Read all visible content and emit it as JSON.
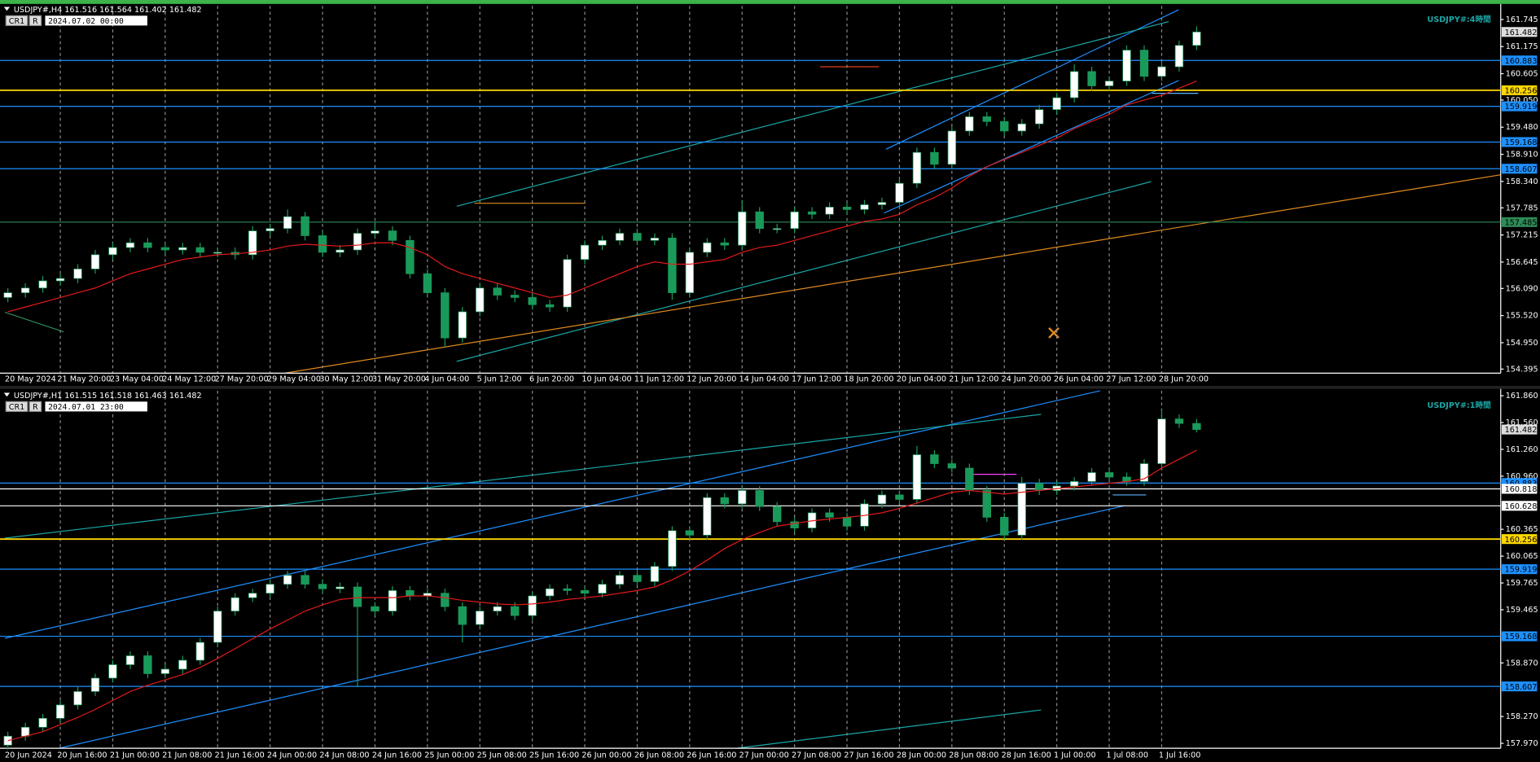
{
  "chart_data": [
    {
      "type": "candlestick",
      "title": "USDJPY#,H4  161.516 161.564 161.402 161.482",
      "buttons": [
        "CR1",
        "R"
      ],
      "time": "2024.07.02 00:00",
      "label": "USDJPY#:4時間",
      "categories": [
        "20 May 2024",
        null,
        null,
        "21 May 20:00",
        null,
        null,
        "23 May 04:00",
        null,
        null,
        "24 May 12:00",
        null,
        null,
        "27 May 20:00",
        null,
        null,
        "29 May 04:00",
        null,
        null,
        "30 May 12:00",
        null,
        null,
        "31 May 20:00",
        null,
        null,
        "4 Jun 04:00",
        null,
        null,
        "5 Jun 12:00",
        null,
        null,
        "6 Jun 20:00",
        null,
        null,
        "10 Jun 04:00",
        null,
        null,
        "11 Jun 12:00",
        null,
        null,
        "12 Jun 20:00",
        null,
        null,
        "14 Jun 04:00",
        null,
        null,
        "17 Jun 12:00",
        null,
        null,
        "18 Jun 20:00",
        null,
        null,
        "20 Jun 04:00",
        null,
        null,
        "21 Jun 12:00",
        null,
        null,
        "24 Jun 20:00",
        null,
        null,
        "26 Jun 04:00",
        null,
        null,
        "27 Jun 12:00",
        null,
        null,
        "28 Jun 20:00",
        null,
        null
      ],
      "open": [
        155.9,
        156.0,
        156.1,
        156.25,
        156.3,
        156.5,
        156.8,
        156.95,
        157.05,
        156.95,
        156.9,
        156.95,
        156.85,
        156.85,
        156.8,
        157.3,
        157.35,
        157.6,
        157.2,
        156.85,
        156.9,
        157.25,
        157.3,
        157.1,
        156.4,
        156.0,
        155.05,
        155.6,
        156.1,
        155.95,
        155.9,
        155.75,
        155.7,
        156.7,
        157.0,
        157.1,
        157.25,
        157.1,
        157.15,
        156.0,
        156.85,
        157.05,
        157.0,
        157.7,
        157.35,
        157.35,
        157.7,
        157.65,
        157.8,
        157.75,
        157.85,
        157.9,
        158.3,
        158.95,
        158.7,
        159.4,
        159.7,
        159.6,
        159.4,
        159.55,
        159.85,
        160.1,
        160.65,
        160.35,
        160.45,
        161.1,
        160.55,
        160.75,
        161.2
      ],
      "high": [
        156.1,
        156.2,
        156.35,
        156.4,
        156.6,
        156.9,
        157.05,
        157.15,
        157.15,
        157.05,
        157.05,
        157.05,
        156.95,
        156.95,
        157.4,
        157.45,
        157.75,
        157.7,
        157.3,
        157.0,
        157.35,
        157.5,
        157.4,
        157.2,
        156.5,
        156.1,
        155.7,
        156.2,
        156.2,
        156.05,
        156.0,
        155.85,
        156.8,
        157.1,
        157.2,
        157.35,
        157.35,
        157.25,
        157.25,
        156.95,
        157.15,
        157.15,
        157.95,
        157.8,
        157.45,
        157.8,
        157.8,
        157.9,
        157.9,
        157.95,
        158.0,
        158.4,
        159.05,
        159.05,
        159.5,
        159.8,
        159.8,
        159.7,
        159.65,
        159.95,
        160.2,
        160.8,
        160.75,
        160.55,
        161.2,
        161.2,
        160.85,
        161.3,
        161.6
      ],
      "low": [
        155.8,
        155.9,
        156.0,
        156.15,
        156.2,
        156.4,
        156.7,
        156.85,
        156.85,
        156.8,
        156.8,
        156.75,
        156.75,
        156.7,
        156.7,
        157.2,
        157.25,
        157.1,
        156.75,
        156.75,
        156.8,
        157.15,
        157.0,
        156.3,
        155.9,
        154.85,
        154.95,
        155.5,
        155.85,
        155.8,
        155.65,
        155.6,
        155.6,
        156.6,
        156.9,
        157.0,
        157.0,
        157.0,
        155.85,
        155.9,
        156.75,
        156.9,
        156.9,
        157.25,
        157.25,
        157.25,
        157.55,
        157.55,
        157.65,
        157.65,
        157.75,
        157.8,
        158.2,
        158.6,
        158.6,
        159.3,
        159.5,
        159.3,
        159.3,
        159.45,
        159.75,
        160.0,
        160.25,
        160.25,
        160.35,
        160.45,
        160.45,
        160.65,
        161.1
      ],
      "close": [
        156.0,
        156.1,
        156.25,
        156.3,
        156.5,
        156.8,
        156.95,
        157.05,
        156.95,
        156.9,
        156.95,
        156.85,
        156.85,
        156.8,
        157.3,
        157.35,
        157.6,
        157.2,
        156.85,
        156.9,
        157.25,
        157.3,
        157.1,
        156.4,
        156.0,
        155.05,
        155.6,
        156.1,
        155.95,
        155.9,
        155.75,
        155.7,
        156.7,
        157.0,
        157.1,
        157.25,
        157.1,
        157.15,
        156.0,
        156.85,
        157.05,
        157.0,
        157.7,
        157.35,
        157.35,
        157.7,
        157.65,
        157.8,
        157.75,
        157.85,
        157.9,
        158.3,
        158.95,
        158.7,
        159.4,
        159.7,
        159.6,
        159.4,
        159.55,
        159.85,
        160.1,
        160.65,
        160.35,
        160.45,
        161.1,
        160.55,
        160.75,
        161.2,
        161.482
      ],
      "ma": [
        155.6,
        155.7,
        155.8,
        155.9,
        156.0,
        156.1,
        156.25,
        156.4,
        156.5,
        156.6,
        156.7,
        156.75,
        156.8,
        156.82,
        156.85,
        156.9,
        156.98,
        157.02,
        157.0,
        156.98,
        157.0,
        157.05,
        157.05,
        156.95,
        156.8,
        156.55,
        156.4,
        156.3,
        156.2,
        156.1,
        156.0,
        155.9,
        155.95,
        156.1,
        156.25,
        156.4,
        156.55,
        156.65,
        156.6,
        156.6,
        156.65,
        156.7,
        156.85,
        156.95,
        157.0,
        157.1,
        157.2,
        157.3,
        157.4,
        157.5,
        157.55,
        157.65,
        157.85,
        158.0,
        158.2,
        158.45,
        158.65,
        158.8,
        158.95,
        159.1,
        159.25,
        159.45,
        159.6,
        159.75,
        159.95,
        160.05,
        160.15,
        160.3,
        160.45
      ],
      "ma_color": "#e31a1a",
      "up_color": "#ffffff",
      "down_color": "#1a9a5a",
      "wick_color": "#1a9a5a",
      "ylim": [
        154.31,
        162.03
      ],
      "yticks": [
        161.745,
        161.175,
        160.605,
        {
          "value": 160.05,
          "label": "160.050"
        },
        {
          "value": 159.48,
          "label": "159.480"
        },
        {
          "value": 158.91,
          "label": "158.910"
        },
        {
          "value": 158.34,
          "label": "158.340"
        },
        157.785,
        157.215,
        156.645,
        {
          "value": 156.09,
          "label": "156.090"
        },
        {
          "value": 155.52,
          "label": "155.520"
        },
        {
          "value": 154.95,
          "label": "154.950"
        },
        154.395
      ],
      "grid": true,
      "levels": [
        {
          "value": 160.883,
          "color": "#1e90ff"
        },
        {
          "value": 160.256,
          "color": "#ffd700"
        },
        {
          "value": 159.919,
          "color": "#1e90ff"
        },
        {
          "value": 159.168,
          "color": "#1e90ff"
        },
        {
          "value": 158.607,
          "color": "#1e90ff"
        },
        {
          "value": 157.485,
          "color": "#2e8b57"
        }
      ],
      "last_price": 161.482
    },
    {
      "type": "candlestick",
      "title": "USDJPY#,H1  161.515 161.518 161.463 161.482",
      "buttons": [
        "CR1",
        "R"
      ],
      "time": "2024.07.01 23:00",
      "label": "USDJPY#:1時間",
      "categories": [
        "20 Jun 2024",
        null,
        null,
        "20 Jun 16:00",
        null,
        null,
        "21 Jun 00:00",
        null,
        null,
        "21 Jun 08:00",
        null,
        null,
        "21 Jun 16:00",
        null,
        null,
        "24 Jun 00:00",
        null,
        null,
        "24 Jun 08:00",
        null,
        null,
        "24 Jun 16:00",
        null,
        null,
        "25 Jun 00:00",
        null,
        null,
        "25 Jun 08:00",
        null,
        null,
        "25 Jun 16:00",
        null,
        null,
        "26 Jun 00:00",
        null,
        null,
        "26 Jun 08:00",
        null,
        null,
        "26 Jun 16:00",
        null,
        null,
        "27 Jun 00:00",
        null,
        null,
        "27 Jun 08:00",
        null,
        null,
        "27 Jun 16:00",
        null,
        null,
        "28 Jun 00:00",
        null,
        null,
        "28 Jun 08:00",
        null,
        null,
        "28 Jun 16:00",
        null,
        null,
        "1 Jul 00:00",
        null,
        null,
        "1 Jul 08:00",
        null,
        null,
        "1 Jul 16:00",
        null,
        null
      ],
      "open": [
        157.95,
        158.05,
        158.15,
        158.25,
        158.4,
        158.55,
        158.7,
        158.85,
        158.95,
        158.75,
        158.8,
        158.9,
        159.1,
        159.45,
        159.6,
        159.65,
        159.75,
        159.85,
        159.75,
        159.7,
        159.72,
        159.5,
        159.45,
        159.68,
        159.62,
        159.65,
        159.5,
        159.3,
        159.45,
        159.5,
        159.4,
        159.62,
        159.7,
        159.68,
        159.65,
        159.75,
        159.85,
        159.78,
        159.95,
        160.35,
        160.3,
        160.72,
        160.65,
        160.8,
        160.62,
        160.45,
        160.38,
        160.55,
        160.5,
        160.4,
        160.65,
        160.75,
        160.7,
        161.2,
        161.1,
        161.05,
        160.8,
        160.5,
        160.3,
        160.88,
        160.8,
        160.85,
        160.9,
        161.0,
        160.95,
        160.9,
        161.1,
        161.6,
        161.55
      ],
      "high": [
        158.1,
        158.2,
        158.3,
        158.45,
        158.6,
        158.75,
        158.9,
        159.0,
        159.0,
        158.85,
        158.95,
        159.15,
        159.5,
        159.65,
        159.7,
        159.8,
        159.9,
        159.9,
        159.8,
        159.77,
        159.77,
        159.55,
        159.73,
        159.73,
        159.7,
        159.7,
        159.55,
        159.5,
        159.55,
        159.55,
        159.67,
        159.75,
        159.75,
        159.73,
        159.8,
        159.9,
        159.9,
        160.0,
        160.4,
        160.4,
        160.77,
        160.77,
        160.85,
        160.85,
        160.67,
        160.5,
        160.6,
        160.6,
        160.55,
        160.7,
        160.8,
        160.8,
        161.3,
        161.25,
        161.15,
        161.1,
        160.85,
        160.55,
        160.95,
        160.93,
        160.9,
        160.95,
        161.05,
        161.05,
        161.0,
        161.15,
        161.7,
        161.65,
        161.6
      ],
      "low": [
        157.9,
        158.0,
        158.1,
        158.2,
        158.35,
        158.5,
        158.65,
        158.8,
        158.7,
        158.7,
        158.75,
        158.85,
        159.05,
        159.4,
        159.55,
        159.6,
        159.7,
        159.7,
        159.65,
        159.65,
        158.6,
        159.4,
        159.4,
        159.57,
        159.57,
        159.45,
        159.1,
        159.25,
        159.4,
        159.35,
        159.35,
        159.57,
        159.63,
        159.6,
        159.6,
        159.7,
        159.73,
        159.73,
        159.9,
        160.25,
        160.25,
        160.6,
        160.6,
        160.57,
        160.4,
        160.33,
        160.33,
        160.45,
        160.35,
        160.35,
        160.6,
        160.65,
        160.65,
        161.05,
        161.0,
        160.75,
        160.45,
        160.25,
        160.25,
        160.75,
        160.75,
        160.8,
        160.85,
        160.9,
        160.85,
        160.85,
        161.05,
        161.5,
        161.45
      ],
      "close": [
        158.05,
        158.15,
        158.25,
        158.4,
        158.55,
        158.7,
        158.85,
        158.95,
        158.75,
        158.8,
        158.9,
        159.1,
        159.45,
        159.6,
        159.65,
        159.75,
        159.85,
        159.75,
        159.7,
        159.72,
        159.5,
        159.45,
        159.68,
        159.62,
        159.65,
        159.5,
        159.3,
        159.45,
        159.5,
        159.4,
        159.62,
        159.7,
        159.68,
        159.65,
        159.75,
        159.85,
        159.78,
        159.95,
        160.35,
        160.3,
        160.72,
        160.65,
        160.8,
        160.62,
        160.45,
        160.38,
        160.55,
        160.5,
        160.4,
        160.65,
        160.75,
        160.7,
        161.2,
        161.1,
        161.05,
        160.8,
        160.5,
        160.3,
        160.88,
        160.8,
        160.85,
        160.9,
        161.0,
        160.95,
        160.9,
        161.1,
        161.6,
        161.55,
        161.482
      ],
      "ma": [
        158.0,
        158.05,
        158.1,
        158.18,
        158.26,
        158.35,
        158.45,
        158.55,
        158.62,
        158.68,
        158.74,
        158.82,
        158.92,
        159.03,
        159.14,
        159.25,
        159.35,
        159.45,
        159.52,
        159.58,
        159.6,
        159.6,
        159.6,
        159.62,
        159.62,
        159.6,
        159.57,
        159.55,
        159.53,
        159.52,
        159.53,
        159.55,
        159.58,
        159.6,
        159.62,
        159.65,
        159.68,
        159.72,
        159.8,
        159.9,
        160.02,
        160.15,
        160.25,
        160.33,
        160.4,
        160.43,
        160.46,
        160.48,
        160.5,
        160.52,
        160.55,
        160.6,
        160.66,
        160.72,
        160.78,
        160.8,
        160.78,
        160.76,
        160.78,
        160.8,
        160.82,
        160.84,
        160.86,
        160.88,
        160.9,
        160.93,
        161.05,
        161.15,
        161.25
      ],
      "ma_color": "#e31a1a",
      "up_color": "#ffffff",
      "down_color": "#1a9a5a",
      "wick_color": "#1a9a5a",
      "ylim": [
        157.915,
        161.915
      ],
      "yticks": [
        {
          "value": 161.86,
          "label": "161.860"
        },
        {
          "value": 161.56,
          "label": "161.560"
        },
        {
          "value": 161.26,
          "label": "161.260"
        },
        {
          "value": 160.96,
          "label": "160.960"
        },
        160.365,
        160.065,
        159.765,
        159.465,
        {
          "value": 158.87,
          "label": "158.870"
        },
        {
          "value": 158.27,
          "label": "158.270"
        },
        {
          "value": 157.97,
          "label": "157.970"
        }
      ],
      "grid": true,
      "levels": [
        {
          "value": 160.883,
          "color": "#1e90ff"
        },
        {
          "value": 160.818,
          "color": "#ffffff"
        },
        {
          "value": 160.628,
          "color": "#ffffff"
        },
        {
          "value": 160.256,
          "color": "#ffd700"
        },
        {
          "value": 159.919,
          "color": "#1e90ff"
        },
        {
          "value": 159.168,
          "color": "#1e90ff"
        },
        {
          "value": 158.607,
          "color": "#1e90ff"
        }
      ],
      "last_price": 161.482
    }
  ]
}
